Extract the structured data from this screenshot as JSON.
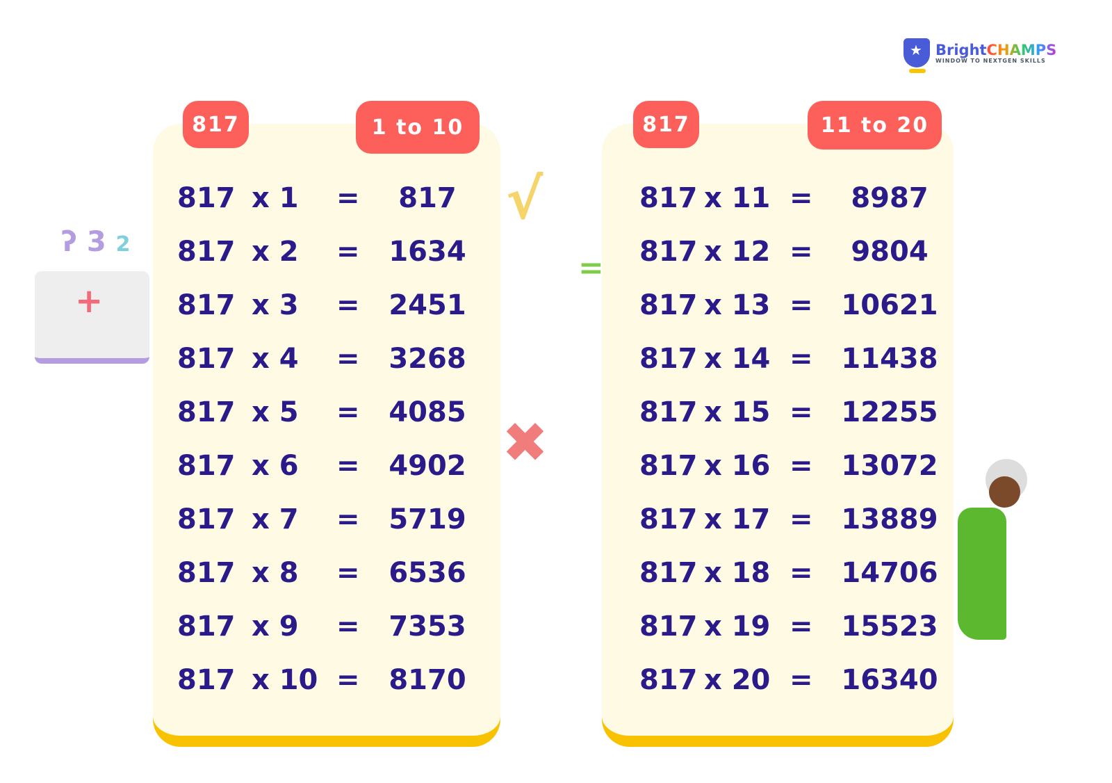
{
  "logo": {
    "brand_part1": "Bright",
    "brand_part2": "CHAMPS",
    "tagline": "WINDOW TO NEXTGEN SKILLS"
  },
  "colors": {
    "pill": "#fd605b",
    "card": "#fefae3",
    "text": "#2a1a8a",
    "accent": "#f9c200",
    "brand_blue": "#4a5bd8"
  },
  "tables": [
    {
      "number": "817",
      "range": "1 to 10",
      "rows": [
        {
          "base": "817",
          "mult": "x 1",
          "eq": "=",
          "result": "817"
        },
        {
          "base": "817",
          "mult": "x 2",
          "eq": "=",
          "result": "1634"
        },
        {
          "base": "817",
          "mult": "x 3",
          "eq": "=",
          "result": "2451"
        },
        {
          "base": "817",
          "mult": "x 4",
          "eq": "=",
          "result": "3268"
        },
        {
          "base": "817",
          "mult": "x 5",
          "eq": "=",
          "result": "4085"
        },
        {
          "base": "817",
          "mult": "x 6",
          "eq": "=",
          "result": "4902"
        },
        {
          "base": "817",
          "mult": "x 7",
          "eq": "=",
          "result": "5719"
        },
        {
          "base": "817",
          "mult": "x 8",
          "eq": "=",
          "result": "6536"
        },
        {
          "base": "817",
          "mult": "x 9",
          "eq": "=",
          "result": "7353"
        },
        {
          "base": "817",
          "mult": "x 10",
          "eq": "=",
          "result": "8170"
        }
      ]
    },
    {
      "number": "817",
      "range": "11 to 20",
      "rows": [
        {
          "base": "817",
          "mult": "x 11",
          "eq": "=",
          "result": "8987"
        },
        {
          "base": "817",
          "mult": "x 12",
          "eq": "=",
          "result": "9804"
        },
        {
          "base": "817",
          "mult": "x 13",
          "eq": "=",
          "result": "10621"
        },
        {
          "base": "817",
          "mult": "x 14",
          "eq": "=",
          "result": "11438"
        },
        {
          "base": "817",
          "mult": "x 15",
          "eq": "=",
          "result": "12255"
        },
        {
          "base": "817",
          "mult": "x 16",
          "eq": "=",
          "result": "13072"
        },
        {
          "base": "817",
          "mult": "x 17",
          "eq": "=",
          "result": "13889"
        },
        {
          "base": "817",
          "mult": "x 18",
          "eq": "=",
          "result": "14706"
        },
        {
          "base": "817",
          "mult": "x 19",
          "eq": "=",
          "result": "15523"
        },
        {
          "base": "817",
          "mult": "x 20",
          "eq": "=",
          "result": "16340"
        }
      ]
    }
  ]
}
